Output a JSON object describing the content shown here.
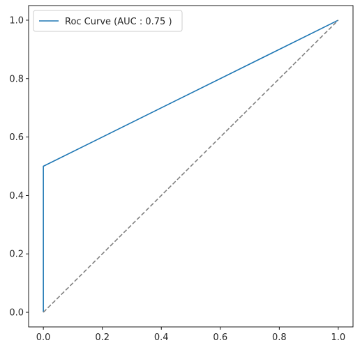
{
  "chart_data": {
    "type": "line",
    "title": "",
    "xlabel": "",
    "ylabel": "",
    "xlim": [
      -0.05,
      1.05
    ],
    "ylim": [
      -0.05,
      1.05
    ],
    "x_ticks": [
      0.0,
      0.2,
      0.4,
      0.6,
      0.8,
      1.0
    ],
    "x_tick_labels": [
      "0.0",
      "0.2",
      "0.4",
      "0.6",
      "0.8",
      "1.0"
    ],
    "y_ticks": [
      0.0,
      0.2,
      0.4,
      0.6,
      0.8,
      1.0
    ],
    "y_tick_labels": [
      "0.0",
      "0.2",
      "0.4",
      "0.6",
      "0.8",
      "1.0"
    ],
    "grid": false,
    "legend": {
      "placement": "upper-left",
      "entries": [
        "Roc Curve (AUC : 0.75 )"
      ]
    },
    "series": [
      {
        "name": "Roc Curve (AUC : 0.75 )",
        "x": [
          0.0,
          0.0,
          1.0
        ],
        "y": [
          0.0,
          0.5,
          1.0
        ],
        "color": "#1f77b4",
        "style": "solid"
      },
      {
        "x": [
          0.0,
          1.0
        ],
        "y": [
          0.0,
          1.0
        ],
        "color": "#808080",
        "style": "dashed"
      }
    ]
  }
}
